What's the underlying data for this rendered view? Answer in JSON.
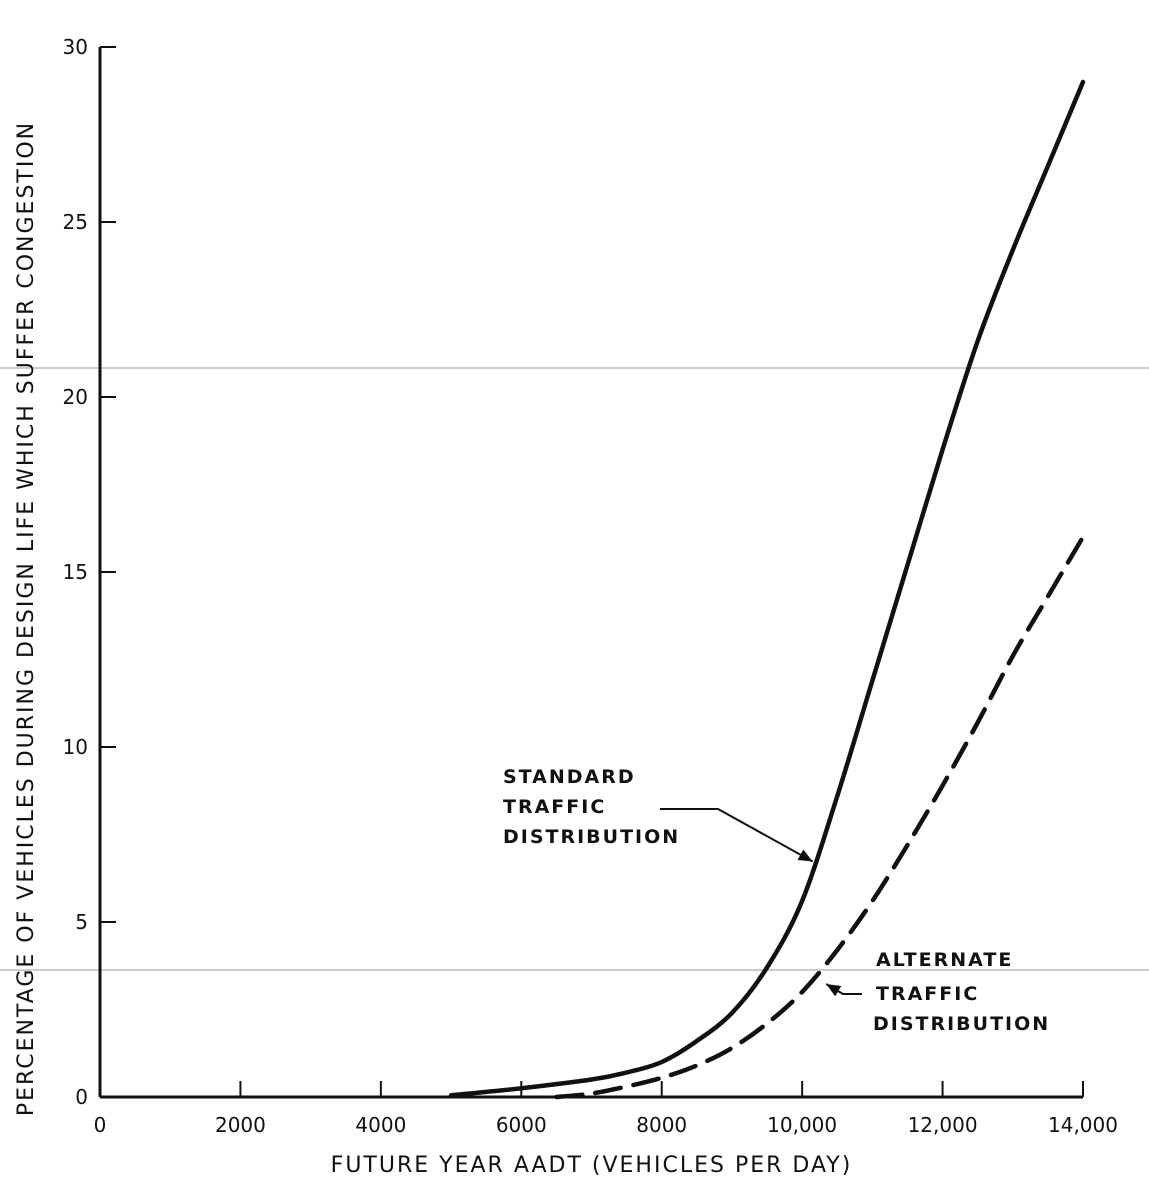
{
  "chart_data": {
    "type": "line",
    "title": "",
    "xlabel": "FUTURE YEAR AADT (VEHICLES PER DAY)",
    "ylabel": "PERCENTAGE OF VEHICLES DURING DESIGN LIFE WHICH SUFFER CONGESTION",
    "xlim": [
      0,
      14000
    ],
    "ylim": [
      0,
      30
    ],
    "x_ticks": [
      0,
      2000,
      4000,
      6000,
      8000,
      10000,
      12000,
      14000
    ],
    "x_tick_labels": [
      "0",
      "2000",
      "4000",
      "6000",
      "8000",
      "10,000",
      "12,000",
      "14,000"
    ],
    "y_ticks": [
      0,
      5,
      10,
      15,
      20,
      25,
      30
    ],
    "y_tick_labels": [
      "0",
      "5",
      "10",
      "15",
      "20",
      "25",
      "30"
    ],
    "grid": false,
    "series": [
      {
        "name": "STANDARD TRAFFIC DISTRIBUTION",
        "style": "solid",
        "x": [
          5000,
          6000,
          7000,
          7500,
          8000,
          8500,
          9000,
          9500,
          10000,
          10500,
          11000,
          11500,
          12000,
          12500,
          13000,
          13500,
          14000
        ],
        "y": [
          0.05,
          0.25,
          0.5,
          0.7,
          1.0,
          1.6,
          2.4,
          3.7,
          5.6,
          8.6,
          11.9,
          15.2,
          18.5,
          21.6,
          24.2,
          26.6,
          29.0
        ]
      },
      {
        "name": "ALTERNATE TRAFFIC DISTRIBUTION",
        "style": "dashed",
        "x": [
          6500,
          7000,
          7500,
          8000,
          8500,
          9000,
          9500,
          10000,
          10500,
          11000,
          11500,
          12000,
          12500,
          13000,
          13500,
          14000
        ],
        "y": [
          0.0,
          0.1,
          0.3,
          0.55,
          0.9,
          1.4,
          2.1,
          3.0,
          4.2,
          5.6,
          7.2,
          8.9,
          10.7,
          12.6,
          14.3,
          16.0
        ]
      }
    ],
    "annotations": [
      {
        "lines": [
          "STANDARD",
          "TRAFFIC",
          "DISTRIBUTION"
        ],
        "target_x": 10150,
        "target_y": 6.5
      },
      {
        "lines": [
          "ALTERNATE",
          "TRAFFIC",
          "DISTRIBUTION"
        ],
        "target_x": 10300,
        "target_y": 3.4
      }
    ]
  }
}
